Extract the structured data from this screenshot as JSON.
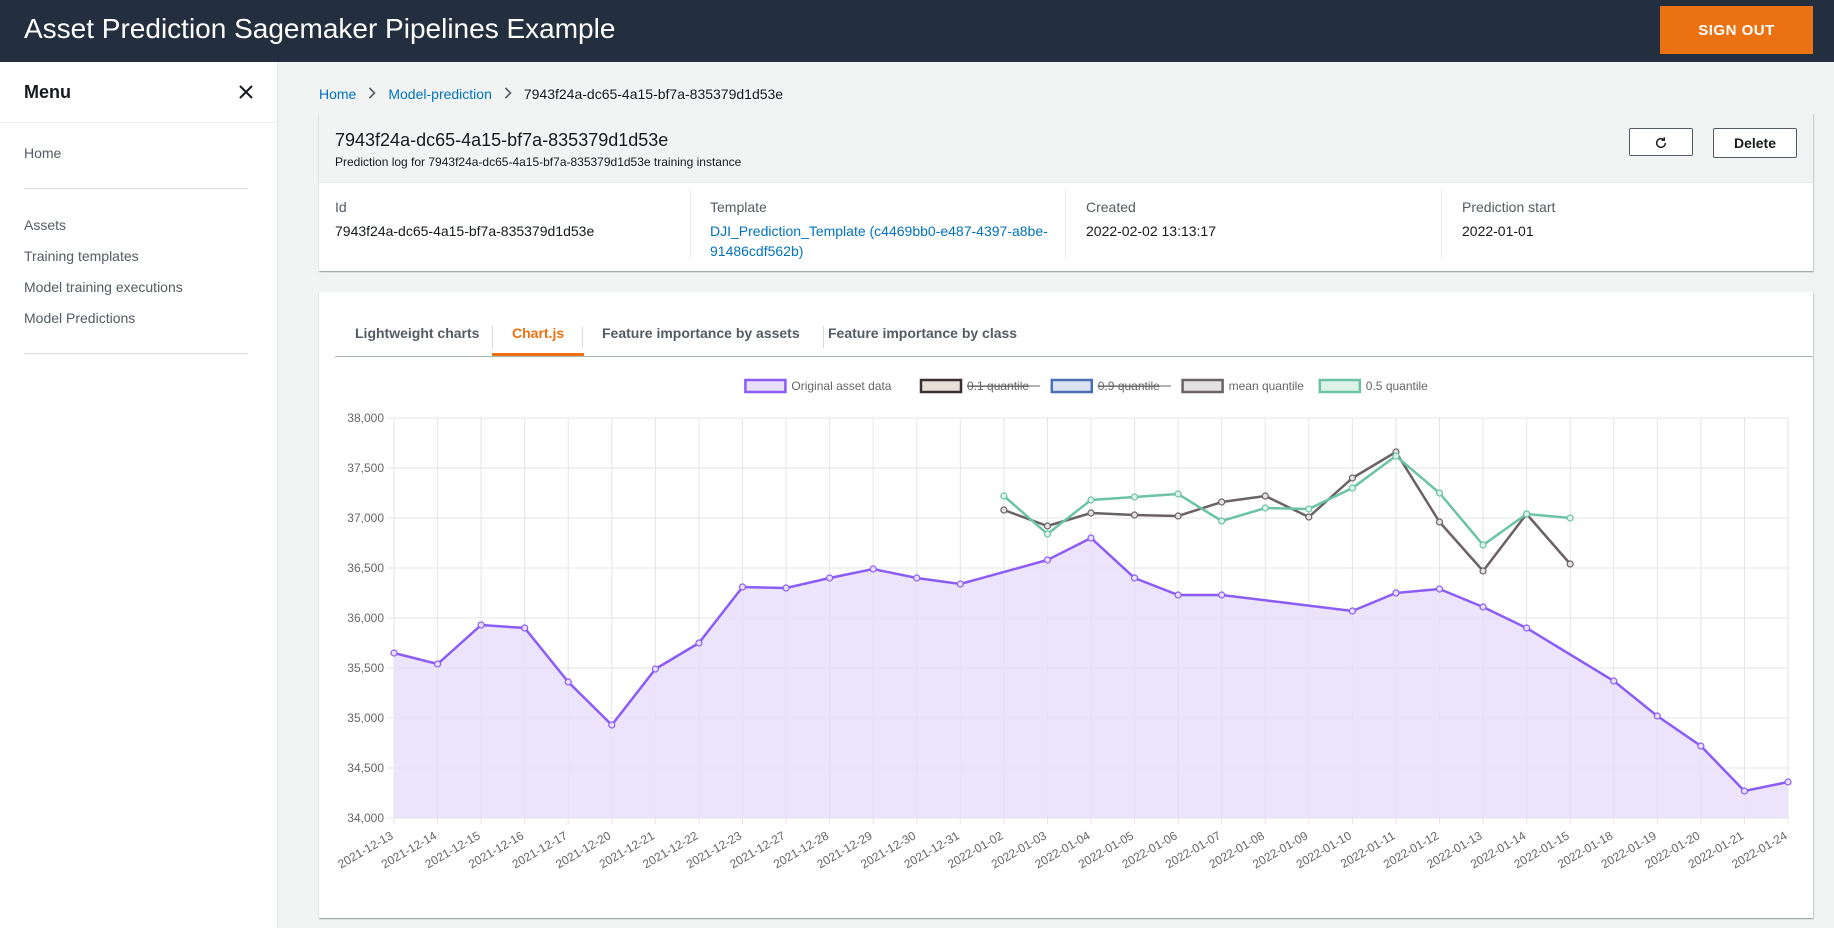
{
  "header": {
    "title": "Asset Prediction Sagemaker Pipelines Example",
    "sign_out": "SIGN OUT"
  },
  "sidebar": {
    "title": "Menu",
    "close_icon": "close-icon",
    "items": [
      {
        "label": "Home"
      },
      {
        "label": "Assets"
      },
      {
        "label": "Training templates"
      },
      {
        "label": "Model training executions"
      },
      {
        "label": "Model Predictions"
      }
    ]
  },
  "breadcrumb": {
    "items": [
      "Home",
      "Model-prediction"
    ],
    "current": "7943f24a-dc65-4a15-bf7a-835379d1d53e",
    "separator_icon": "chevron-right-icon"
  },
  "instance": {
    "title": "7943f24a-dc65-4a15-bf7a-835379d1d53e",
    "subtitle": "Prediction log for 7943f24a-dc65-4a15-bf7a-835379d1d53e training instance",
    "refresh_icon": "refresh-icon",
    "delete_label": "Delete",
    "fields": {
      "id_label": "Id",
      "id_value": "7943f24a-dc65-4a15-bf7a-835379d1d53e",
      "template_label": "Template",
      "template_value": "DJI_Prediction_Template (c4469bb0-e487-4397-a8be-91486cdf562b)",
      "created_label": "Created",
      "created_value": "2022-02-02 13:13:17",
      "start_label": "Prediction start",
      "start_value": "2022-01-01"
    }
  },
  "tabs": [
    {
      "label": "Lightweight charts",
      "active": false
    },
    {
      "label": "Chart.js",
      "active": true
    },
    {
      "label": "Feature importance by assets",
      "active": false
    },
    {
      "label": "Feature importance by class",
      "active": false
    }
  ],
  "colors": {
    "accent": "#ec7211",
    "link": "#0073bb",
    "header_bg": "#232f3e"
  },
  "chart_data": {
    "type": "line",
    "categories": [
      "2021-12-13",
      "2021-12-14",
      "2021-12-15",
      "2021-12-16",
      "2021-12-17",
      "2021-12-20",
      "2021-12-21",
      "2021-12-22",
      "2021-12-23",
      "2021-12-27",
      "2021-12-28",
      "2021-12-29",
      "2021-12-30",
      "2021-12-31",
      "2022-01-02",
      "2022-01-03",
      "2022-01-04",
      "2022-01-05",
      "2022-01-06",
      "2022-01-07",
      "2022-01-08",
      "2022-01-09",
      "2022-01-10",
      "2022-01-11",
      "2022-01-12",
      "2022-01-13",
      "2022-01-14",
      "2022-01-15",
      "2022-01-18",
      "2022-01-19",
      "2022-01-20",
      "2022-01-21",
      "2022-01-24"
    ],
    "ylim": [
      34000,
      38000
    ],
    "yticks": [
      34000,
      34500,
      35000,
      35500,
      36000,
      36500,
      37000,
      37500,
      38000
    ],
    "ytick_labels": [
      "34,000",
      "34,500",
      "35,000",
      "35,500",
      "36,000",
      "36,500",
      "37,000",
      "37,500",
      "38,000"
    ],
    "grid": true,
    "legend_position": "top",
    "series": [
      {
        "name": "Original asset data",
        "color": "#8b5cf6",
        "fill": "#e7dff9",
        "hidden": false,
        "area": true,
        "values": [
          35650,
          35540,
          35930,
          35900,
          35360,
          34930,
          35490,
          35750,
          36310,
          36300,
          36400,
          36490,
          36400,
          36340,
          null,
          36580,
          36800,
          36400,
          36230,
          36230,
          null,
          null,
          36070,
          36250,
          36290,
          36110,
          35900,
          null,
          35370,
          35020,
          34720,
          34270,
          34360
        ]
      },
      {
        "name": "0.1 quantile",
        "color": "#3b2f2f",
        "fill": "#e8dfd8",
        "hidden": true,
        "values": [
          null,
          null,
          null,
          null,
          null,
          null,
          null,
          null,
          null,
          null,
          null,
          null,
          null,
          null,
          null,
          null,
          null,
          null,
          null,
          null,
          null,
          null,
          null,
          null,
          null,
          null,
          null,
          null,
          null,
          null,
          null,
          null,
          null
        ]
      },
      {
        "name": "0.9 quantile",
        "color": "#4a6fb5",
        "fill": "#dbe3f3",
        "hidden": true,
        "values": [
          null,
          null,
          null,
          null,
          null,
          null,
          null,
          null,
          null,
          null,
          null,
          null,
          null,
          null,
          null,
          null,
          null,
          null,
          null,
          null,
          null,
          null,
          null,
          null,
          null,
          null,
          null,
          null,
          null,
          null,
          null,
          null,
          null
        ]
      },
      {
        "name": "mean quantile",
        "color": "#6b6266",
        "fill": "#e5e2e3",
        "hidden": false,
        "values": [
          null,
          null,
          null,
          null,
          null,
          null,
          null,
          null,
          null,
          null,
          null,
          null,
          null,
          null,
          37080,
          36920,
          37050,
          37030,
          37020,
          37160,
          37220,
          37010,
          37400,
          37660,
          36960,
          36470,
          37040,
          36540,
          null,
          null,
          null,
          null,
          null
        ]
      },
      {
        "name": "0.5 quantile",
        "color": "#6cc3a5",
        "fill": "#ddf3ea",
        "hidden": false,
        "values": [
          null,
          null,
          null,
          null,
          null,
          null,
          null,
          null,
          null,
          null,
          null,
          null,
          null,
          null,
          37220,
          36840,
          37180,
          37210,
          37240,
          36970,
          37100,
          37090,
          37300,
          37620,
          37250,
          36730,
          37040,
          37000,
          null,
          null,
          null,
          null,
          null
        ]
      }
    ]
  }
}
